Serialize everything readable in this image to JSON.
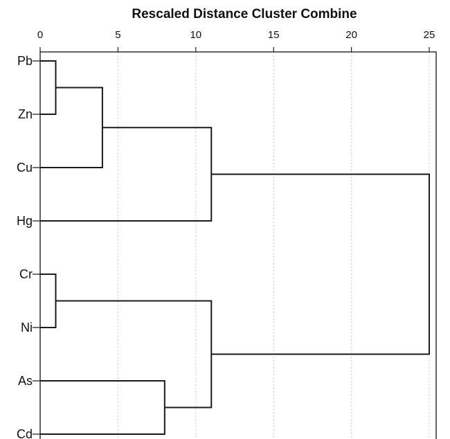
{
  "chart_data": {
    "type": "dendrogram",
    "title": "Rescaled Distance Cluster Combine",
    "xlim": [
      0,
      25
    ],
    "xticks": [
      0,
      5,
      10,
      15,
      20,
      25
    ],
    "grid": "vertical dotted",
    "leaves": [
      "Pb",
      "Zn",
      "Cu",
      "Hg",
      "Cr",
      "Ni",
      "As",
      "Cd"
    ],
    "merges": [
      {
        "id": "c1",
        "left": "Pb",
        "right": "Zn",
        "distance": 1
      },
      {
        "id": "c2",
        "left": "Cr",
        "right": "Ni",
        "distance": 1
      },
      {
        "id": "c3",
        "left": "c1",
        "right": "Cu",
        "distance": 4
      },
      {
        "id": "c4",
        "left": "As",
        "right": "Cd",
        "distance": 8
      },
      {
        "id": "c5",
        "left": "c3",
        "right": "Hg",
        "distance": 11
      },
      {
        "id": "c6",
        "left": "c2",
        "right": "c4",
        "distance": 11
      },
      {
        "id": "c7",
        "left": "c5",
        "right": "c6",
        "distance": 25
      }
    ]
  }
}
